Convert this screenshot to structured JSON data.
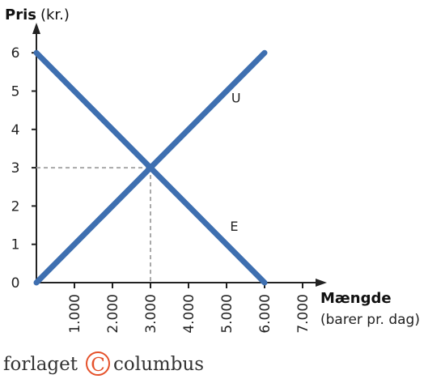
{
  "chart_data": {
    "type": "line",
    "y_axis": {
      "title": "Pris",
      "unit": "(kr.)",
      "ticks": [
        "0",
        "1",
        "2",
        "3",
        "4",
        "5",
        "6"
      ],
      "ylim": [
        0,
        6.6
      ]
    },
    "x_axis": {
      "title": "Mængde",
      "unit": "(barer pr. dag)",
      "ticks": [
        "1.000",
        "2.000",
        "3.000",
        "4.000",
        "5.000",
        "6.000",
        "7.000"
      ],
      "xlim": [
        0,
        7200
      ]
    },
    "series": [
      {
        "name": "U",
        "x": [
          0,
          6000
        ],
        "y": [
          0,
          6
        ]
      },
      {
        "name": "E",
        "x": [
          0,
          6000
        ],
        "y": [
          6,
          0
        ]
      }
    ],
    "equilibrium": {
      "x": 3000,
      "y": 3
    },
    "colors": {
      "curve": "#3e6fb0",
      "guide": "#a8a8a8",
      "axis": "#222222"
    }
  },
  "publisher": {
    "name_left": "forlaget",
    "name_right": "columbus",
    "logo_letter": "C"
  }
}
